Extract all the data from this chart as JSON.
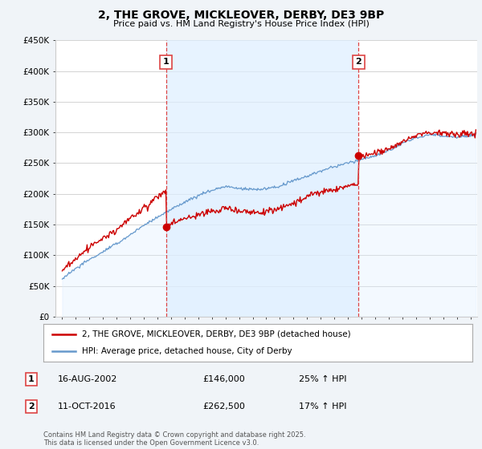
{
  "title": "2, THE GROVE, MICKLEOVER, DERBY, DE3 9BP",
  "subtitle": "Price paid vs. HM Land Registry's House Price Index (HPI)",
  "ylim": [
    0,
    450000
  ],
  "yticks": [
    0,
    50000,
    100000,
    150000,
    200000,
    250000,
    300000,
    350000,
    400000,
    450000
  ],
  "ytick_labels": [
    "£0",
    "£50K",
    "£100K",
    "£150K",
    "£200K",
    "£250K",
    "£300K",
    "£350K",
    "£400K",
    "£450K"
  ],
  "xlim_start": 1994.5,
  "xlim_end": 2025.5,
  "xticks": [
    1995,
    1996,
    1997,
    1998,
    1999,
    2000,
    2001,
    2002,
    2003,
    2004,
    2005,
    2006,
    2007,
    2008,
    2009,
    2010,
    2011,
    2012,
    2013,
    2014,
    2015,
    2016,
    2017,
    2018,
    2019,
    2020,
    2021,
    2022,
    2023,
    2024,
    2025
  ],
  "marker1_x": 2002.62,
  "marker1_y": 146000,
  "marker1_label": "1",
  "marker1_date": "16-AUG-2002",
  "marker1_price": "£146,000",
  "marker1_hpi": "25% ↑ HPI",
  "marker2_x": 2016.78,
  "marker2_y": 262500,
  "marker2_label": "2",
  "marker2_date": "11-OCT-2016",
  "marker2_price": "£262,500",
  "marker2_hpi": "17% ↑ HPI",
  "legend_label1": "2, THE GROVE, MICKLEOVER, DERBY, DE3 9BP (detached house)",
  "legend_label2": "HPI: Average price, detached house, City of Derby",
  "footer": "Contains HM Land Registry data © Crown copyright and database right 2025.\nThis data is licensed under the Open Government Licence v3.0.",
  "line1_color": "#cc0000",
  "line2_color": "#6699cc",
  "fill_color": "#ddeeff",
  "shade_color": "#ddeeff",
  "bg_color": "#f0f4f8",
  "plot_bg": "#ffffff",
  "grid_color": "#cccccc",
  "vline_color": "#dd4444"
}
